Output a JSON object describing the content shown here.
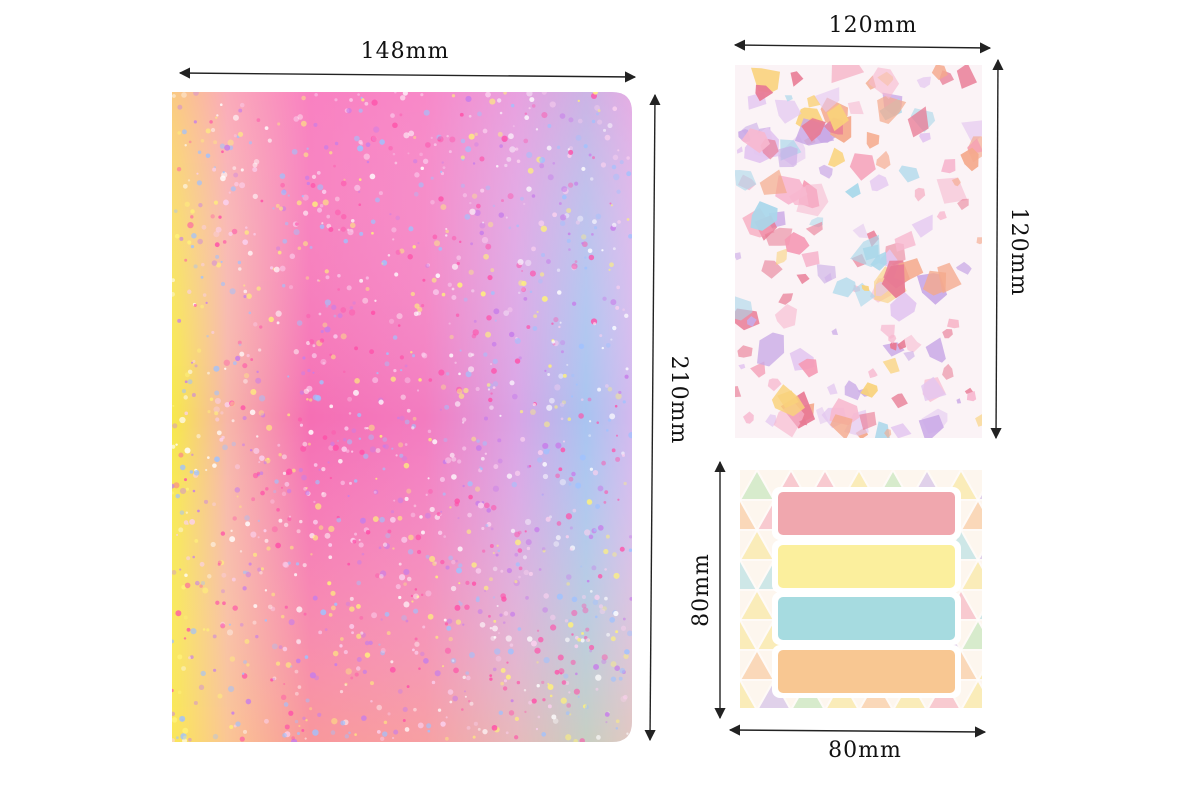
{
  "items": [
    {
      "name_width": "148mm",
      "name_height": "210mm"
    },
    {
      "name_width": "120mm",
      "name_height": "120mm"
    },
    {
      "name_width": "80mm",
      "name_height": "80mm"
    }
  ]
}
